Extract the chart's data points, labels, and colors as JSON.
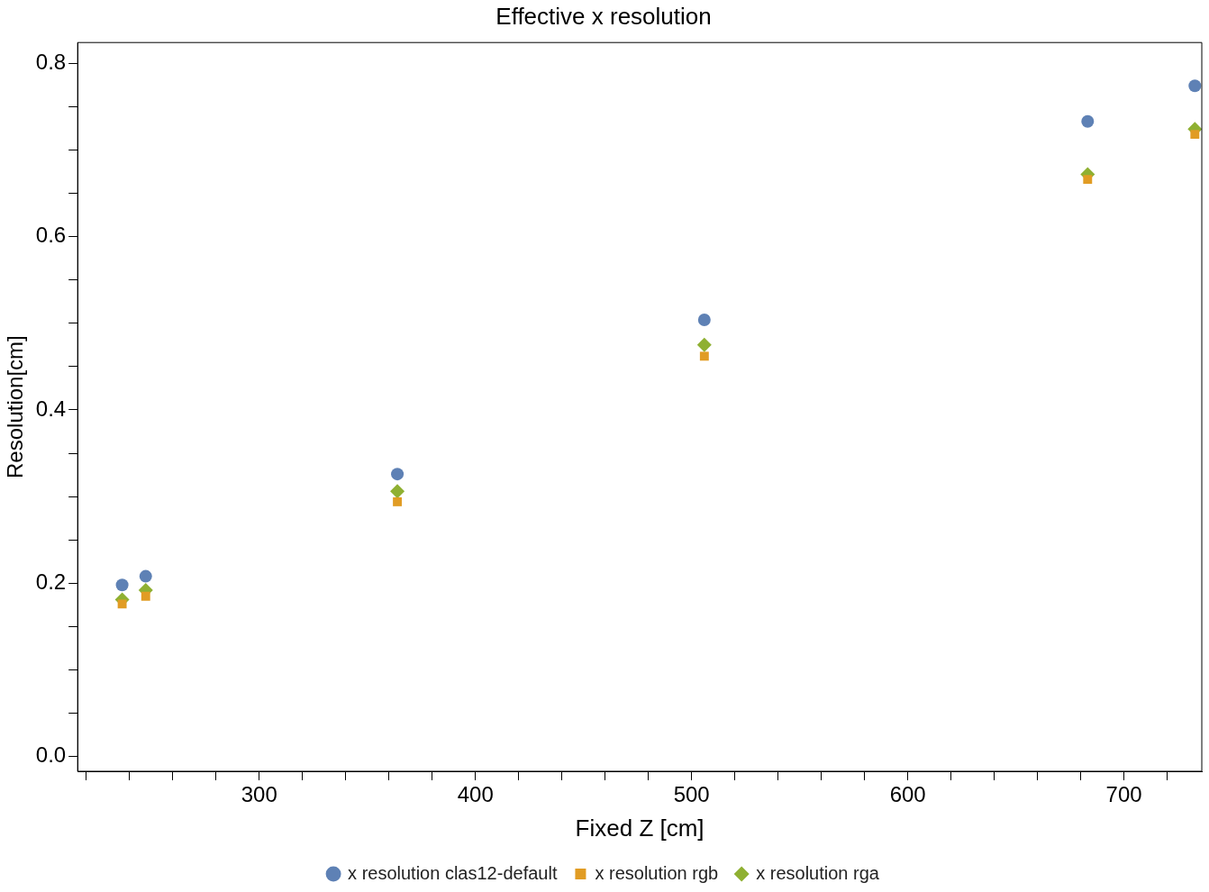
{
  "chart_data": {
    "type": "scatter",
    "title": "Effective x resolution",
    "xlabel": "Fixed Z [cm]",
    "ylabel": "Resolution[cm]",
    "x": [
      236.6,
      247.5,
      363.9,
      505.9,
      683.2,
      732.8
    ],
    "series": [
      {
        "name": "x resolution clas12-default",
        "color": "#5e81b5",
        "marker": "circle",
        "values": [
          0.198,
          0.208,
          0.326,
          0.504,
          0.733,
          0.774
        ]
      },
      {
        "name": "x resolution rgb",
        "color": "#e19c24",
        "marker": "square",
        "values": [
          0.176,
          0.185,
          0.294,
          0.462,
          0.666,
          0.718
        ]
      },
      {
        "name": "x resolution rga",
        "color": "#8fb032",
        "marker": "diamond",
        "values": [
          0.181,
          0.192,
          0.306,
          0.475,
          0.672,
          0.724
        ]
      }
    ],
    "xlim": [
      216,
      736
    ],
    "xticks": [
      {
        "value": 220,
        "label": null
      },
      {
        "value": 240,
        "label": null
      },
      {
        "value": 260,
        "label": null
      },
      {
        "value": 280,
        "label": null
      },
      300,
      {
        "value": 320,
        "label": null
      },
      {
        "value": 340,
        "label": null
      },
      {
        "value": 360,
        "label": null
      },
      {
        "value": 380,
        "label": null
      },
      400,
      {
        "value": 420,
        "label": null
      },
      {
        "value": 440,
        "label": null
      },
      {
        "value": 460,
        "label": null
      },
      {
        "value": 480,
        "label": null
      },
      500,
      {
        "value": 520,
        "label": null
      },
      {
        "value": 540,
        "label": null
      },
      {
        "value": 560,
        "label": null
      },
      {
        "value": 580,
        "label": null
      },
      600,
      {
        "value": 620,
        "label": null
      },
      {
        "value": 640,
        "label": null
      },
      {
        "value": 660,
        "label": null
      },
      {
        "value": 680,
        "label": null
      },
      700,
      {
        "value": 720,
        "label": null
      }
    ],
    "ylim": [
      -0.017,
      0.824
    ],
    "yticks": [
      {
        "value": 0,
        "label": "0.0"
      },
      {
        "value": 0.05,
        "label": null
      },
      {
        "value": 0.1,
        "label": null
      },
      {
        "value": 0.15,
        "label": null
      },
      0.2,
      {
        "value": 0.25,
        "label": null
      },
      {
        "value": 0.3,
        "label": null
      },
      {
        "value": 0.35,
        "label": null
      },
      0.4,
      {
        "value": 0.45,
        "label": null
      },
      {
        "value": 0.5,
        "label": null
      },
      {
        "value": 0.55,
        "label": null
      },
      0.6,
      {
        "value": 0.65,
        "label": null
      },
      {
        "value": 0.7,
        "label": null
      },
      {
        "value": 0.75,
        "label": null
      },
      0.8
    ],
    "grid": false,
    "legend": "bottom"
  }
}
